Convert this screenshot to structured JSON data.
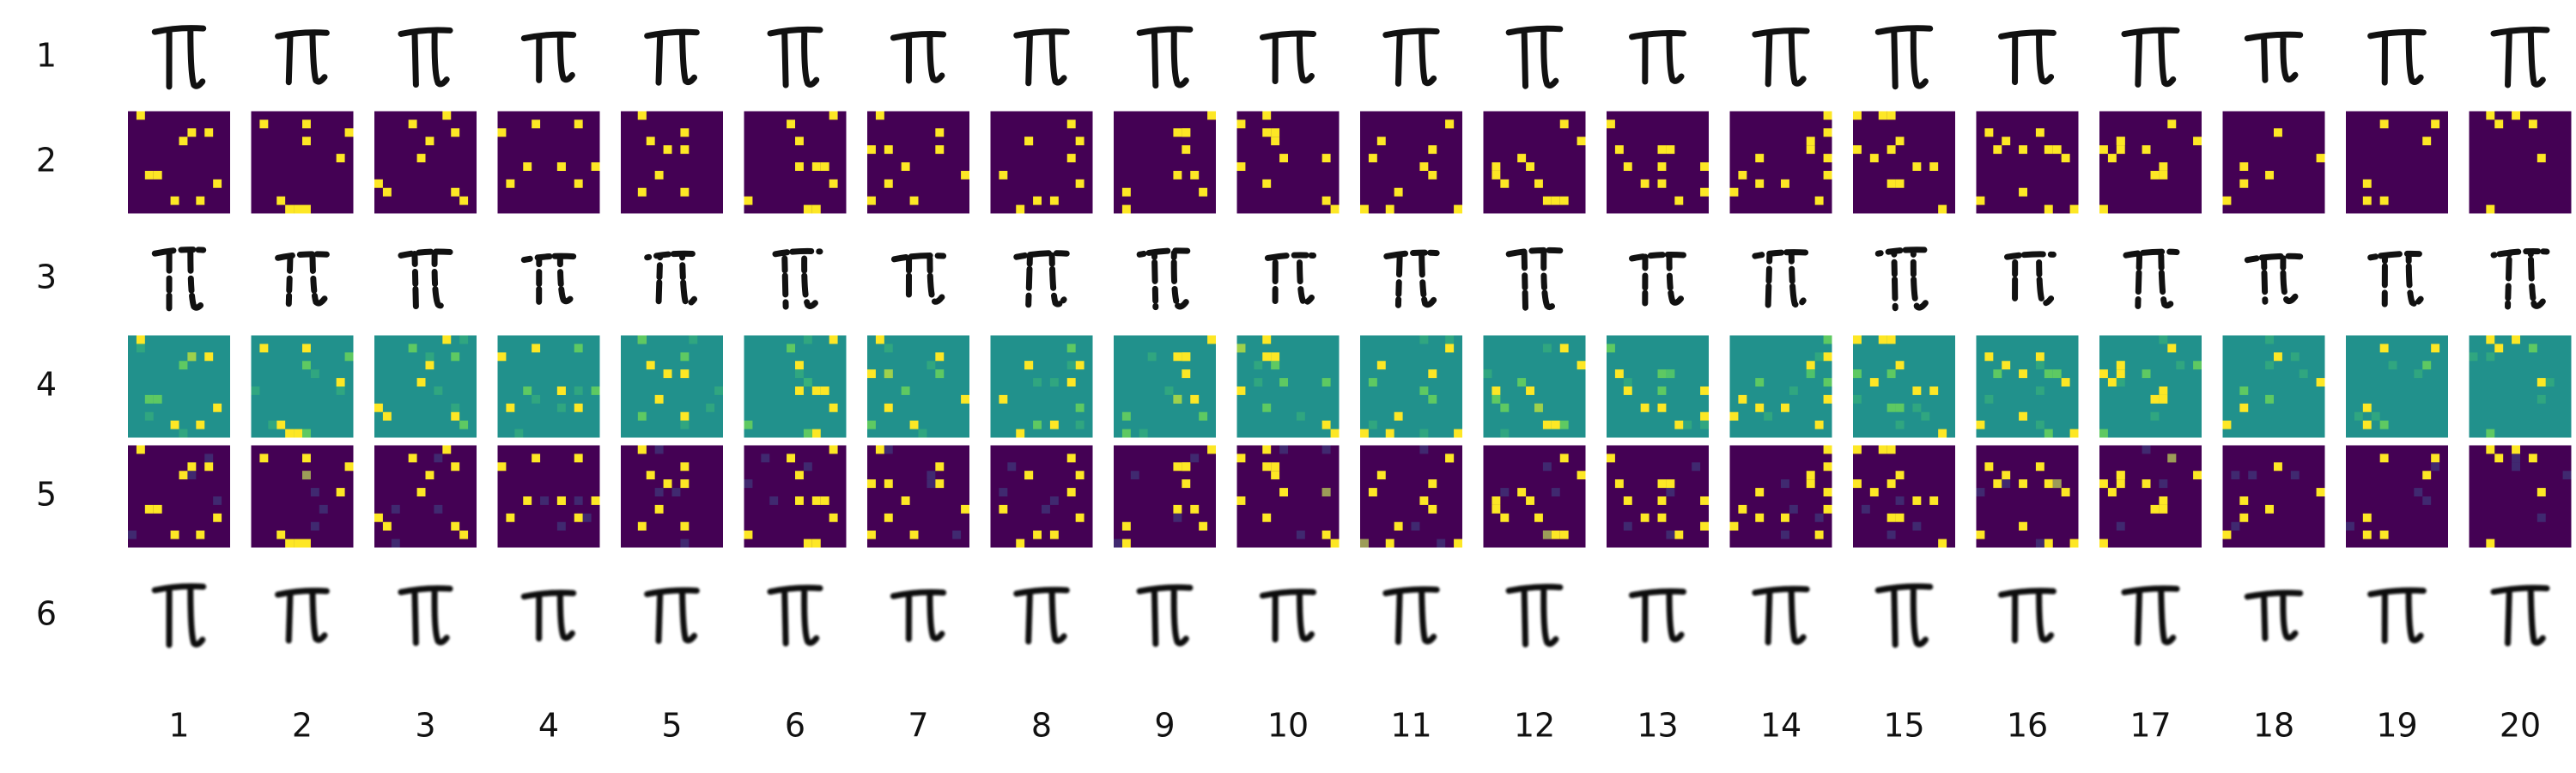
{
  "row_labels": [
    "1",
    "2",
    "3",
    "4",
    "5",
    "6"
  ],
  "column_labels": [
    "1",
    "2",
    "3",
    "4",
    "5",
    "6",
    "7",
    "8",
    "9",
    "10",
    "11",
    "12",
    "13",
    "14",
    "15",
    "16",
    "17",
    "18",
    "19",
    "20"
  ]
}
